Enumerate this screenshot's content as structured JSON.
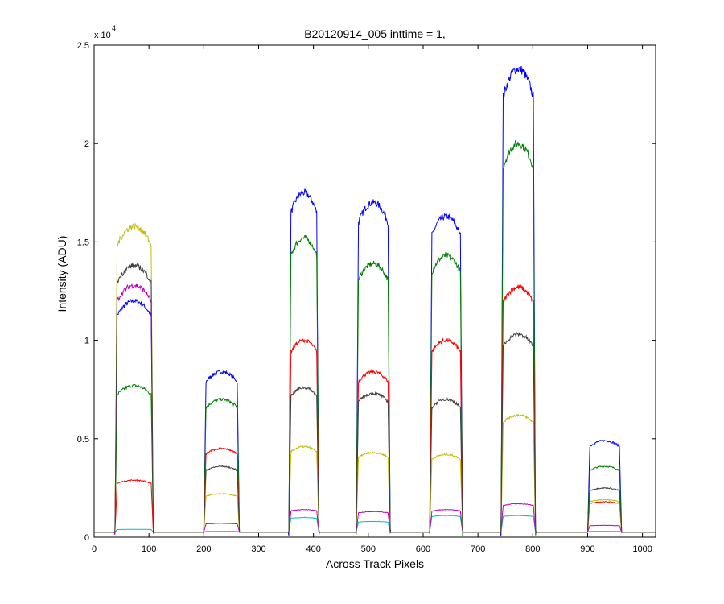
{
  "chart_data": {
    "type": "line",
    "title": "B20120914_005 inttime = 1,",
    "xlabel": "Across Track Pixels",
    "ylabel": "Intensity (ADU)",
    "y_exponent_label": "x 10",
    "y_exponent_power": "4",
    "xlim": [
      0,
      1024
    ],
    "ylim": [
      0,
      25000
    ],
    "x_ticks": [
      0,
      100,
      200,
      300,
      400,
      500,
      600,
      700,
      800,
      900,
      1000
    ],
    "x_tick_labels": [
      "0",
      "100",
      "200",
      "300",
      "400",
      "500",
      "600",
      "700",
      "800",
      "900",
      "1000"
    ],
    "y_ticks": [
      0,
      5000,
      10000,
      15000,
      20000,
      25000
    ],
    "y_tick_labels": [
      "0",
      "0.5",
      "1",
      "1.5",
      "2",
      "2.5"
    ],
    "grid": false,
    "baseline": 250,
    "panels": [
      {
        "start": 38,
        "end": 108
      },
      {
        "start": 200,
        "end": 265
      },
      {
        "start": 355,
        "end": 410
      },
      {
        "start": 478,
        "end": 540
      },
      {
        "start": 612,
        "end": 672
      },
      {
        "start": 742,
        "end": 805
      },
      {
        "start": 900,
        "end": 962
      }
    ],
    "series": [
      {
        "color": "#0000ff",
        "values": [
          12000,
          8400,
          17500,
          17000,
          16300,
          23800,
          4900
        ]
      },
      {
        "color": "#008000",
        "values": [
          7700,
          7000,
          15200,
          13900,
          14300,
          20000,
          3600
        ]
      },
      {
        "color": "#ff0000",
        "values": [
          2900,
          4500,
          10000,
          8400,
          10000,
          12700,
          1800
        ]
      },
      {
        "color": "#00bfbf",
        "values": [
          400,
          300,
          1000,
          800,
          1100,
          1100,
          300
        ]
      },
      {
        "color": "#bf00bf",
        "values": [
          12800,
          700,
          1400,
          1300,
          1400,
          1700,
          600
        ]
      },
      {
        "color": "#bfbf00",
        "values": [
          15800,
          2200,
          4600,
          4300,
          4200,
          6200,
          1900
        ]
      },
      {
        "color": "#404040",
        "values": [
          13800,
          3600,
          7600,
          7300,
          7000,
          10300,
          2500
        ]
      }
    ]
  }
}
